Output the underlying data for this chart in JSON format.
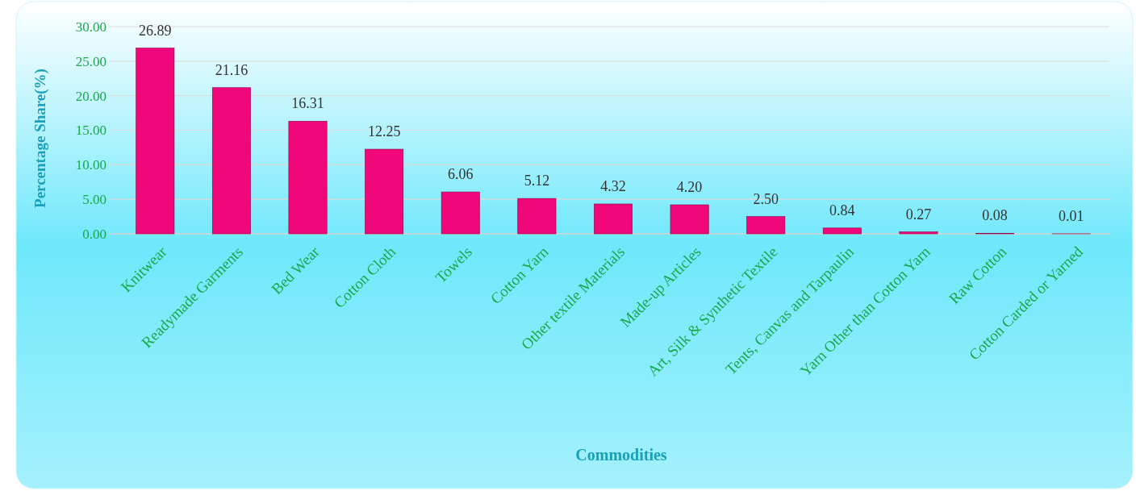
{
  "chart_data": {
    "type": "bar",
    "xlabel": "Commodities",
    "ylabel": "Percentage Share(%)",
    "categories": [
      "Knitwear",
      "Readymade Garments",
      "Bed Wear",
      "Cotton Cloth",
      "Towels",
      "Cotton Yarn",
      "Other textile Materials",
      "Made-up Articles",
      "Art, Silk & Synthetic Textile",
      "Tents, Canvas and Tarpaulin",
      "Yarn Other than Cotton Yarn",
      "Raw Cotton",
      "Cotton Carded or Yarned"
    ],
    "values": [
      26.89,
      21.16,
      16.31,
      12.25,
      6.06,
      5.12,
      4.32,
      4.2,
      2.5,
      0.84,
      0.27,
      0.08,
      0.01
    ],
    "value_labels": [
      "26.89",
      "21.16",
      "16.31",
      "12.25",
      "6.06",
      "5.12",
      "4.32",
      "4.20",
      "2.50",
      "0.84",
      "0.27",
      "0.08",
      "0.01"
    ],
    "color": "#f0087a",
    "ylim": [
      0,
      30
    ],
    "yticks": [
      {
        "value": 0,
        "label": "0.00"
      },
      {
        "value": 5,
        "label": "5.00"
      },
      {
        "value": 10,
        "label": "10.00"
      },
      {
        "value": 15,
        "label": "15.00"
      },
      {
        "value": 20,
        "label": "20.00"
      },
      {
        "value": 25,
        "label": "25.00"
      },
      {
        "value": 30,
        "label": "30.00"
      }
    ],
    "grid": "y"
  }
}
